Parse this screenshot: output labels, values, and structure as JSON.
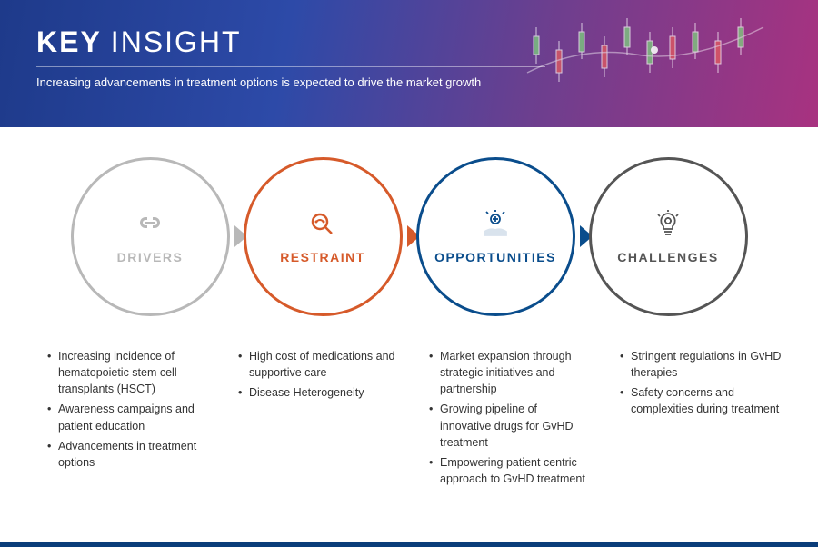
{
  "header": {
    "title_bold": "KEY",
    "title_light": "INSIGHT",
    "subtitle": "Increasing advancements in treatment options is expected to drive the market growth"
  },
  "categories": [
    {
      "label": "DRIVERS",
      "color": "#b8b8b8",
      "icon_color": "#b8b8b8",
      "icon": "link",
      "bullets": [
        "Increasing incidence of hematopoietic stem cell transplants (HSCT)",
        "Awareness campaigns and patient education",
        "Advancements in treatment options"
      ]
    },
    {
      "label": "RESTRAINT",
      "color": "#d65a2a",
      "icon_color": "#d65a2a",
      "icon": "magnify",
      "bullets": [
        "High cost of medications and supportive care",
        "Disease Heterogeneity"
      ]
    },
    {
      "label": "OPPORTUNITIES",
      "color": "#0a4d8c",
      "icon_color": "#0a4d8c",
      "icon": "hand-plus",
      "bullets": [
        "Market expansion through strategic initiatives and partnership",
        "Growing pipeline of innovative drugs for GvHD treatment",
        "Empowering patient centric approach to GvHD treatment"
      ]
    },
    {
      "label": "CHALLENGES",
      "color": "#555555",
      "icon_color": "#555555",
      "icon": "bulb-gear",
      "bullets": [
        "Stringent regulations in GvHD therapies",
        "Safety concerns and complexities during treatment"
      ]
    }
  ],
  "style": {
    "background": "#ffffff",
    "footer_color": "#0a3d7a",
    "bullet_text_color": "#333333",
    "bullet_fontsize": 12.5,
    "label_fontsize": 14,
    "circle_diameter": 175,
    "circle_border_width": 3
  }
}
